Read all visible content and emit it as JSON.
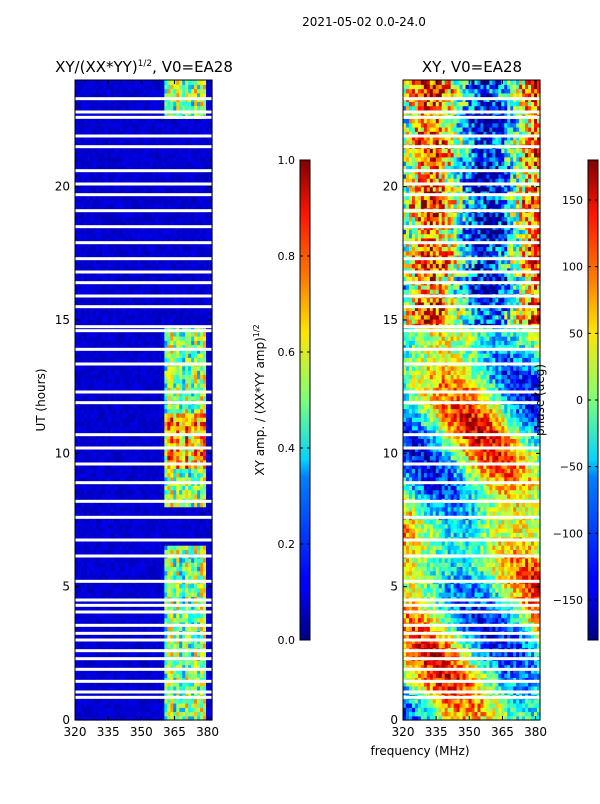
{
  "figure": {
    "suptitle": "2021-05-02 0.0-24.0",
    "xlabel": "frequency (MHz)"
  },
  "chart_data": [
    {
      "type": "heatmap",
      "title": "XY/(XX*YY)",
      "title_exponent": "1/2",
      "title_suffix": ", V0=EA28",
      "ylabel": "UT (hours)",
      "xlim": [
        320,
        382
      ],
      "ylim": [
        0,
        24
      ],
      "xticks": [
        "320",
        "335",
        "350",
        "365",
        "380"
      ],
      "xtick_values": [
        320,
        335,
        350,
        365,
        380
      ],
      "yticks": [
        "0",
        "5",
        "10",
        "15",
        "20"
      ],
      "ytick_values": [
        0,
        5,
        10,
        15,
        20
      ],
      "colorbar": {
        "label_main": "XY amp. / (XX*YY amp)",
        "label_exponent": "1/2",
        "range": [
          0.0,
          1.0
        ],
        "ticks": [
          "0.0",
          "0.2",
          "0.4",
          "0.6",
          "0.8",
          "1.0"
        ],
        "tick_values": [
          0.0,
          0.2,
          0.4,
          0.6,
          0.8,
          1.0
        ],
        "colormap": "jet"
      },
      "flagged_hours": [
        0.85,
        1.05,
        1.45,
        1.9,
        2.3,
        2.6,
        3.0,
        3.25,
        3.55,
        4.05,
        4.3,
        4.5,
        5.2,
        6.15,
        6.75,
        7.6,
        8.2,
        8.9,
        9.6,
        10.2,
        10.7,
        11.9,
        12.3,
        13.35,
        13.9,
        14.6,
        14.75,
        15.5,
        15.9,
        16.4,
        16.8,
        17.3,
        17.9,
        18.5,
        19.1,
        19.7,
        20.1,
        20.6,
        21.5,
        21.9,
        22.6,
        22.8,
        23.3
      ]
    },
    {
      "type": "heatmap",
      "title": "XY, V0=EA28",
      "xlim": [
        320,
        382
      ],
      "ylim": [
        0,
        24
      ],
      "xticks": [
        "320",
        "335",
        "350",
        "365",
        "380"
      ],
      "xtick_values": [
        320,
        335,
        350,
        365,
        380
      ],
      "yticks": [
        "0",
        "5",
        "10",
        "15",
        "20"
      ],
      "ytick_values": [
        0,
        5,
        10,
        15,
        20
      ],
      "colorbar": {
        "label": "phase (deg)",
        "range": [
          -180,
          180
        ],
        "ticks": [
          "−150",
          "−100",
          "−50",
          "0",
          "50",
          "100",
          "150"
        ],
        "tick_values": [
          -150,
          -100,
          -50,
          0,
          50,
          100,
          150
        ],
        "colormap": "jet"
      },
      "flagged_hours": [
        0.85,
        1.05,
        1.45,
        1.9,
        2.3,
        2.6,
        3.0,
        3.25,
        3.55,
        4.05,
        4.3,
        4.5,
        5.2,
        6.15,
        6.75,
        7.6,
        8.2,
        8.9,
        9.6,
        10.2,
        10.7,
        11.9,
        12.3,
        13.35,
        13.9,
        14.6,
        14.75,
        15.5,
        15.9,
        16.4,
        16.8,
        17.3,
        17.9,
        18.5,
        19.1,
        19.7,
        20.1,
        20.6,
        21.5,
        21.9,
        22.6,
        22.8,
        23.3
      ]
    }
  ]
}
